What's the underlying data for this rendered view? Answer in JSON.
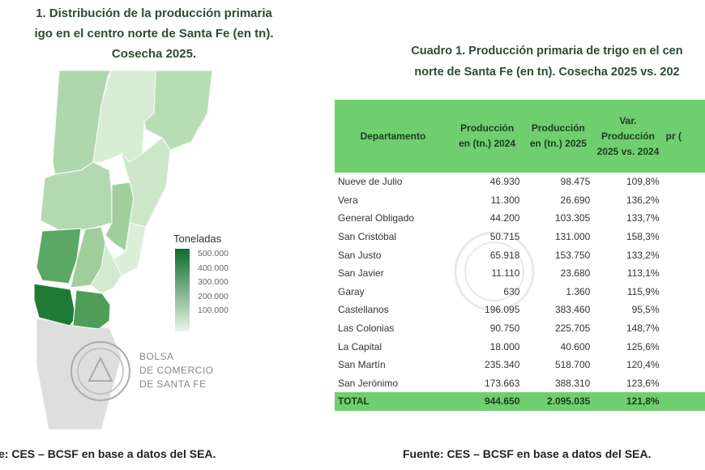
{
  "map": {
    "title_lines": [
      "1. Distribución de la producción primaria",
      "igo en el centro norte de Santa Fe (en tn).",
      "Cosecha 2025."
    ],
    "legend": {
      "title": "Toneladas",
      "ticks": [
        "500.000",
        "400.000",
        "300.000",
        "200.000",
        "100.000"
      ],
      "color_high": "#0e6b2a",
      "color_low": "#e9f5e6"
    },
    "logo_text": [
      "BOLSA",
      "DE COMERCIO",
      "DE SANTA FE"
    ],
    "source": "e: CES – BCSF en base a datos del SEA."
  },
  "table": {
    "title_lines": [
      "Cuadro 1. Producción primaria de trigo en el cen",
      "norte de Santa Fe (en tn). Cosecha 2025 vs. 202"
    ],
    "headers": [
      "Departamento",
      "Producción en (tn.) 2024",
      "Producción en (tn.) 2025",
      "Var. Producción 2025 vs. 2024",
      "pr ("
    ],
    "header_color": "#6fcf6f",
    "rows": [
      [
        "Nueve de Julio",
        "46.930",
        "98.475",
        "109,8%"
      ],
      [
        "Vera",
        "11.300",
        "26.690",
        "136,2%"
      ],
      [
        "General Obligado",
        "44.200",
        "103.305",
        "133,7%"
      ],
      [
        "San Cristóbal",
        "50.715",
        "131.000",
        "158,3%"
      ],
      [
        "San Justo",
        "65.918",
        "153.750",
        "133,2%"
      ],
      [
        "San Javier",
        "11.110",
        "23.680",
        "113,1%"
      ],
      [
        "Garay",
        "630",
        "1.360",
        "115,9%"
      ],
      [
        "Castellanos",
        "196.095",
        "383.460",
        "95,5%"
      ],
      [
        "Las Colonias",
        "90.750",
        "225.705",
        "148,7%"
      ],
      [
        "La Capital",
        "18.000",
        "40.600",
        "125,6%"
      ],
      [
        "San Martín",
        "235.340",
        "518.700",
        "120,4%"
      ],
      [
        "San Jerónimo",
        "173.663",
        "388.310",
        "123,6%"
      ]
    ],
    "total": [
      "TOTAL",
      "944.650",
      "2.095.035",
      "121,8%"
    ],
    "source": "Fuente: CES – BCSF en base a datos del SEA."
  }
}
